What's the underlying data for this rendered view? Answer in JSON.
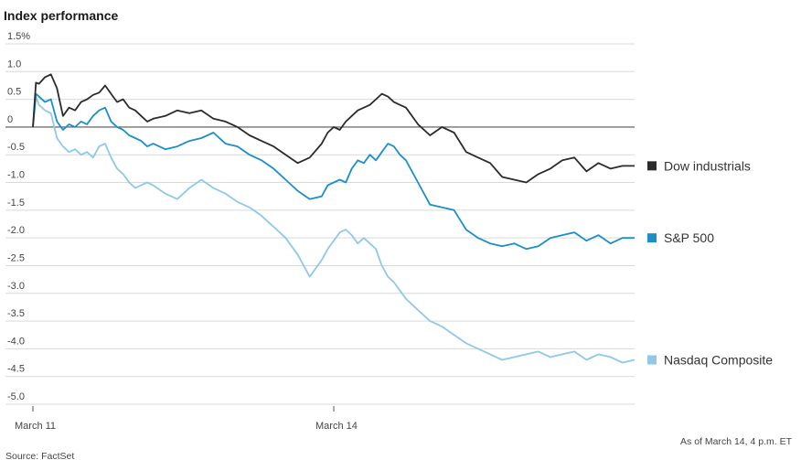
{
  "chart_data": {
    "type": "line",
    "title": "Index performance",
    "y_tick_labels": [
      "1.5%",
      "1.0",
      "0.5",
      "0",
      "-0.5",
      "-1.0",
      "-1.5",
      "-2.0",
      "-2.5",
      "-3.0",
      "-3.5",
      "-4.0",
      "-4.5",
      "-5.0"
    ],
    "y_ticks": [
      1.5,
      1.0,
      0.5,
      0,
      -0.5,
      -1.0,
      -1.5,
      -2.0,
      -2.5,
      -3.0,
      -3.5,
      -4.0,
      -4.5,
      -5.0
    ],
    "ylim": [
      -5.0,
      1.5
    ],
    "x_tick_labels": [
      "March 11",
      "March 14"
    ],
    "x_ticks": [
      0,
      50
    ],
    "xlim": [
      0,
      100
    ],
    "grid": true,
    "legend_position": "right",
    "note": "As of March 14, 4 p.m. ET",
    "source": "Source: FactSet",
    "x": [
      0,
      0.5,
      1,
      2,
      3,
      4,
      5,
      6,
      7,
      8,
      9,
      10,
      11,
      12,
      13,
      14,
      15,
      16,
      17,
      18,
      19,
      20,
      22,
      24,
      26,
      28,
      30,
      32,
      34,
      36,
      38,
      40,
      42,
      44,
      46,
      48,
      49,
      50,
      51,
      52,
      53,
      54,
      55,
      56,
      57,
      58,
      59,
      60,
      61,
      62,
      64,
      66,
      68,
      70,
      72,
      74,
      76,
      78,
      80,
      82,
      84,
      86,
      88,
      90,
      92,
      94,
      96,
      98,
      100
    ],
    "series": [
      {
        "name": "Dow industrials",
        "color": "#2b2b2b",
        "values": [
          0,
          0.8,
          0.78,
          0.9,
          0.95,
          0.7,
          0.2,
          0.35,
          0.3,
          0.45,
          0.5,
          0.58,
          0.62,
          0.75,
          0.6,
          0.45,
          0.5,
          0.35,
          0.3,
          0.2,
          0.1,
          0.15,
          0.2,
          0.3,
          0.25,
          0.3,
          0.15,
          0.1,
          0.0,
          -0.15,
          -0.25,
          -0.35,
          -0.5,
          -0.65,
          -0.55,
          -0.3,
          -0.1,
          0.0,
          -0.05,
          0.1,
          0.2,
          0.3,
          0.35,
          0.4,
          0.5,
          0.6,
          0.55,
          0.45,
          0.4,
          0.35,
          0.05,
          -0.15,
          0.0,
          -0.1,
          -0.45,
          -0.55,
          -0.65,
          -0.9,
          -0.95,
          -1.0,
          -0.85,
          -0.75,
          -0.6,
          -0.55,
          -0.8,
          -0.65,
          -0.75,
          -0.7,
          -0.7
        ]
      },
      {
        "name": "S&P 500",
        "color": "#1b8fc7",
        "values": [
          0,
          0.6,
          0.55,
          0.45,
          0.5,
          0.1,
          -0.05,
          0.05,
          0.0,
          0.1,
          0.05,
          0.2,
          0.3,
          0.35,
          0.1,
          0.0,
          -0.05,
          -0.15,
          -0.2,
          -0.25,
          -0.35,
          -0.3,
          -0.4,
          -0.35,
          -0.25,
          -0.2,
          -0.1,
          -0.3,
          -0.35,
          -0.5,
          -0.6,
          -0.75,
          -0.95,
          -1.15,
          -1.3,
          -1.25,
          -1.05,
          -1.0,
          -0.95,
          -1.0,
          -0.75,
          -0.6,
          -0.65,
          -0.5,
          -0.6,
          -0.45,
          -0.3,
          -0.35,
          -0.5,
          -0.6,
          -1.0,
          -1.4,
          -1.45,
          -1.5,
          -1.85,
          -2.0,
          -2.1,
          -2.15,
          -2.1,
          -2.2,
          -2.15,
          -2.0,
          -1.95,
          -1.9,
          -2.05,
          -1.95,
          -2.1,
          -2.0,
          -2.0
        ]
      },
      {
        "name": "Nasdaq Composite",
        "color": "#8ec9e8",
        "values": [
          0,
          0.55,
          0.4,
          0.3,
          0.25,
          -0.2,
          -0.35,
          -0.45,
          -0.4,
          -0.5,
          -0.45,
          -0.55,
          -0.35,
          -0.3,
          -0.55,
          -0.75,
          -0.85,
          -1.0,
          -1.1,
          -1.05,
          -1.0,
          -1.05,
          -1.2,
          -1.3,
          -1.1,
          -0.95,
          -1.1,
          -1.2,
          -1.35,
          -1.45,
          -1.6,
          -1.8,
          -2.0,
          -2.3,
          -2.7,
          -2.4,
          -2.2,
          -2.05,
          -1.9,
          -1.85,
          -1.95,
          -2.1,
          -2.0,
          -2.1,
          -2.2,
          -2.5,
          -2.7,
          -2.8,
          -2.95,
          -3.1,
          -3.3,
          -3.5,
          -3.6,
          -3.75,
          -3.9,
          -4.0,
          -4.1,
          -4.2,
          -4.15,
          -4.1,
          -4.05,
          -4.15,
          -4.1,
          -4.05,
          -4.2,
          -4.1,
          -4.15,
          -4.25,
          -4.2
        ]
      }
    ]
  }
}
